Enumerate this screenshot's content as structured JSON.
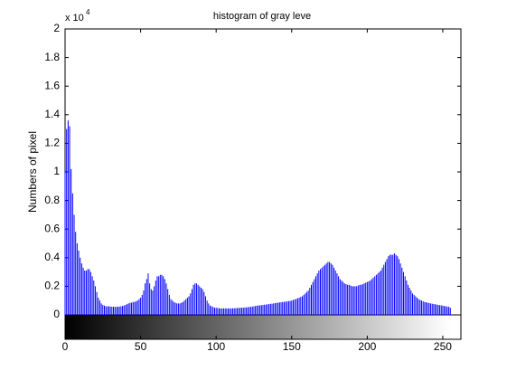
{
  "chart_data": {
    "type": "stem",
    "title": "histogram of gray leve",
    "y_label": "Numbers of pixel",
    "y_multiplier": {
      "base": "x 10",
      "exponent": "4"
    },
    "color": "#0000ff",
    "xlim": [
      0,
      262
    ],
    "xticks": [
      0,
      50,
      100,
      150,
      200,
      250
    ],
    "ylim": [
      0,
      2
    ],
    "yticks": [
      0,
      0.2,
      0.4,
      0.6,
      0.8,
      1,
      1.2,
      1.4,
      1.6,
      1.8,
      2
    ],
    "x": [
      0,
      1,
      2,
      3,
      4,
      5,
      6,
      7,
      8,
      9,
      10,
      11,
      12,
      13,
      14,
      15,
      16,
      17,
      18,
      19,
      20,
      21,
      22,
      23,
      24,
      25,
      26,
      27,
      28,
      29,
      30,
      31,
      32,
      33,
      34,
      35,
      36,
      37,
      38,
      39,
      40,
      41,
      42,
      43,
      44,
      45,
      46,
      47,
      48,
      49,
      50,
      51,
      52,
      53,
      54,
      55,
      56,
      57,
      58,
      59,
      60,
      61,
      62,
      63,
      64,
      65,
      66,
      67,
      68,
      69,
      70,
      71,
      72,
      73,
      74,
      75,
      76,
      77,
      78,
      79,
      80,
      81,
      82,
      83,
      84,
      85,
      86,
      87,
      88,
      89,
      90,
      91,
      92,
      93,
      94,
      95,
      96,
      97,
      98,
      99,
      100,
      101,
      102,
      103,
      104,
      105,
      106,
      107,
      108,
      109,
      110,
      111,
      112,
      113,
      114,
      115,
      116,
      117,
      118,
      119,
      120,
      121,
      122,
      123,
      124,
      125,
      126,
      127,
      128,
      129,
      130,
      131,
      132,
      133,
      134,
      135,
      136,
      137,
      138,
      139,
      140,
      141,
      142,
      143,
      144,
      145,
      146,
      147,
      148,
      149,
      150,
      151,
      152,
      153,
      154,
      155,
      156,
      157,
      158,
      159,
      160,
      161,
      162,
      163,
      164,
      165,
      166,
      167,
      168,
      169,
      170,
      171,
      172,
      173,
      174,
      175,
      176,
      177,
      178,
      179,
      180,
      181,
      182,
      183,
      184,
      185,
      186,
      187,
      188,
      189,
      190,
      191,
      192,
      193,
      194,
      195,
      196,
      197,
      198,
      199,
      200,
      201,
      202,
      203,
      204,
      205,
      206,
      207,
      208,
      209,
      210,
      211,
      212,
      213,
      214,
      215,
      216,
      217,
      218,
      219,
      220,
      221,
      222,
      223,
      224,
      225,
      226,
      227,
      228,
      229,
      230,
      231,
      232,
      233,
      234,
      235,
      236,
      237,
      238,
      239,
      240,
      241,
      242,
      243,
      244,
      245,
      246,
      247,
      248,
      249,
      250,
      251,
      252,
      253,
      254,
      255
    ],
    "values": [
      1.0,
      1.3,
      1.36,
      1.32,
      1.02,
      0.85,
      0.7,
      0.58,
      0.5,
      0.45,
      0.4,
      0.36,
      0.33,
      0.31,
      0.31,
      0.32,
      0.32,
      0.3,
      0.27,
      0.24,
      0.2,
      0.16,
      0.12,
      0.1,
      0.08,
      0.07,
      0.065,
      0.06,
      0.06,
      0.06,
      0.058,
      0.057,
      0.057,
      0.056,
      0.056,
      0.057,
      0.058,
      0.06,
      0.062,
      0.065,
      0.07,
      0.075,
      0.08,
      0.085,
      0.085,
      0.09,
      0.09,
      0.095,
      0.1,
      0.11,
      0.12,
      0.14,
      0.17,
      0.22,
      0.25,
      0.29,
      0.22,
      0.18,
      0.17,
      0.2,
      0.24,
      0.27,
      0.27,
      0.28,
      0.28,
      0.27,
      0.25,
      0.22,
      0.18,
      0.14,
      0.11,
      0.1,
      0.09,
      0.085,
      0.08,
      0.08,
      0.08,
      0.085,
      0.09,
      0.1,
      0.11,
      0.12,
      0.13,
      0.15,
      0.18,
      0.21,
      0.22,
      0.22,
      0.21,
      0.2,
      0.19,
      0.18,
      0.16,
      0.13,
      0.1,
      0.08,
      0.065,
      0.06,
      0.055,
      0.05,
      0.05,
      0.048,
      0.046,
      0.045,
      0.045,
      0.045,
      0.045,
      0.045,
      0.045,
      0.045,
      0.045,
      0.046,
      0.046,
      0.047,
      0.048,
      0.048,
      0.05,
      0.05,
      0.05,
      0.052,
      0.052,
      0.054,
      0.055,
      0.056,
      0.058,
      0.06,
      0.062,
      0.064,
      0.066,
      0.067,
      0.068,
      0.07,
      0.071,
      0.072,
      0.074,
      0.075,
      0.077,
      0.078,
      0.08,
      0.082,
      0.084,
      0.085,
      0.087,
      0.088,
      0.09,
      0.091,
      0.093,
      0.094,
      0.096,
      0.098,
      0.1,
      0.104,
      0.108,
      0.112,
      0.116,
      0.12,
      0.125,
      0.13,
      0.14,
      0.15,
      0.16,
      0.17,
      0.19,
      0.21,
      0.23,
      0.25,
      0.27,
      0.29,
      0.31,
      0.32,
      0.33,
      0.34,
      0.35,
      0.36,
      0.37,
      0.37,
      0.36,
      0.35,
      0.33,
      0.31,
      0.29,
      0.27,
      0.25,
      0.24,
      0.23,
      0.22,
      0.215,
      0.21,
      0.21,
      0.205,
      0.2,
      0.2,
      0.2,
      0.2,
      0.205,
      0.21,
      0.21,
      0.215,
      0.22,
      0.225,
      0.23,
      0.235,
      0.24,
      0.25,
      0.26,
      0.27,
      0.28,
      0.29,
      0.3,
      0.31,
      0.33,
      0.35,
      0.37,
      0.39,
      0.41,
      0.42,
      0.42,
      0.42,
      0.43,
      0.42,
      0.41,
      0.39,
      0.36,
      0.33,
      0.3,
      0.27,
      0.24,
      0.21,
      0.19,
      0.17,
      0.15,
      0.14,
      0.13,
      0.12,
      0.11,
      0.105,
      0.1,
      0.095,
      0.09,
      0.088,
      0.085,
      0.083,
      0.08,
      0.078,
      0.076,
      0.074,
      0.072,
      0.07,
      0.068,
      0.066,
      0.064,
      0.062,
      0.06,
      0.058,
      0.056,
      0.05
    ]
  }
}
